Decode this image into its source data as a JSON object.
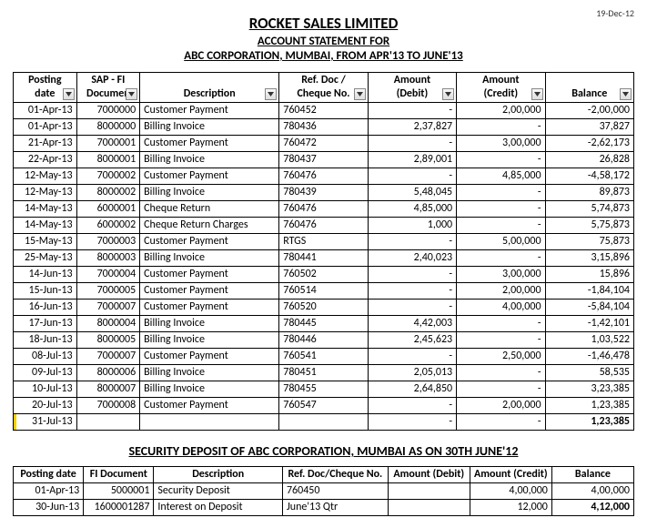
{
  "top_date": "19-Dec-12",
  "header": {
    "company": "ROCKET SALES LIMITED",
    "stmt": "ACCOUNT  STATEMENT FOR",
    "party": "ABC CORPORATION, MUMBAI, FROM APR'13 TO JUNE'13"
  },
  "main_table": {
    "col_widths_pct": [
      10,
      10,
      22,
      14,
      14,
      14,
      14
    ],
    "headers": [
      [
        "Posting",
        "date"
      ],
      [
        "SAP - FI",
        "Documen"
      ],
      [
        "",
        "Description"
      ],
      [
        "Ref. Doc /",
        "Cheque No."
      ],
      [
        "Amount",
        "(Debit)"
      ],
      [
        "Amount",
        "(Credit)"
      ],
      [
        "",
        "Balance"
      ]
    ],
    "rows": [
      {
        "date": "01-Apr-13",
        "doc": "7000000",
        "desc": "Customer Payment",
        "ref": "760452",
        "debit": "-",
        "credit": "2,00,000",
        "bal": "-2,00,000"
      },
      {
        "date": "01-Apr-13",
        "doc": "8000000",
        "desc": "Billing Invoice",
        "ref": "780436",
        "debit": "2,37,827",
        "credit": "-",
        "bal": "37,827"
      },
      {
        "date": "21-Apr-13",
        "doc": "7000001",
        "desc": "Customer Payment",
        "ref": "760472",
        "debit": "-",
        "credit": "3,00,000",
        "bal": "-2,62,173"
      },
      {
        "date": "22-Apr-13",
        "doc": "8000001",
        "desc": "Billing Invoice",
        "ref": "780437",
        "debit": "2,89,001",
        "credit": "-",
        "bal": "26,828"
      },
      {
        "date": "12-May-13",
        "doc": "7000002",
        "desc": "Customer Payment",
        "ref": "760476",
        "debit": "-",
        "credit": "4,85,000",
        "bal": "-4,58,172"
      },
      {
        "date": "12-May-13",
        "doc": "8000002",
        "desc": "Billing Invoice",
        "ref": "780439",
        "debit": "5,48,045",
        "credit": "-",
        "bal": "89,873"
      },
      {
        "date": "14-May-13",
        "doc": "6000001",
        "desc": "Cheque Return",
        "ref": "760476",
        "debit": "4,85,000",
        "credit": "-",
        "bal": "5,74,873"
      },
      {
        "date": "14-May-13",
        "doc": "6000002",
        "desc": "Cheque Return Charges",
        "ref": "760476",
        "debit": "1,000",
        "credit": "-",
        "bal": "5,75,873"
      },
      {
        "date": "15-May-13",
        "doc": "7000003",
        "desc": "Customer Payment",
        "ref": "RTGS",
        "debit": "-",
        "credit": "5,00,000",
        "bal": "75,873"
      },
      {
        "date": "25-May-13",
        "doc": "8000003",
        "desc": "Billing Invoice",
        "ref": "780441",
        "debit": "2,40,023",
        "credit": "-",
        "bal": "3,15,896"
      },
      {
        "date": "14-Jun-13",
        "doc": "7000004",
        "desc": "Customer Payment",
        "ref": "760502",
        "debit": "-",
        "credit": "3,00,000",
        "bal": "15,896"
      },
      {
        "date": "15-Jun-13",
        "doc": "7000005",
        "desc": "Customer Payment",
        "ref": "760514",
        "debit": "-",
        "credit": "2,00,000",
        "bal": "-1,84,104"
      },
      {
        "date": "16-Jun-13",
        "doc": "7000007",
        "desc": "Customer Payment",
        "ref": "760520",
        "debit": "-",
        "credit": "4,00,000",
        "bal": "-5,84,104"
      },
      {
        "date": "17-Jun-13",
        "doc": "8000004",
        "desc": "Billing Invoice",
        "ref": "780445",
        "debit": "4,42,003",
        "credit": "-",
        "bal": "-1,42,101"
      },
      {
        "date": "18-Jun-13",
        "doc": "8000005",
        "desc": "Billing Invoice",
        "ref": "780446",
        "debit": "2,45,623",
        "credit": "-",
        "bal": "1,03,522"
      },
      {
        "date": "08-Jul-13",
        "doc": "7000007",
        "desc": "Customer Payment",
        "ref": "760541",
        "debit": "-",
        "credit": "2,50,000",
        "bal": "-1,46,478"
      },
      {
        "date": "09-Jul-13",
        "doc": "8000006",
        "desc": "Billing Invoice",
        "ref": "780451",
        "debit": "2,05,013",
        "credit": "-",
        "bal": "58,535"
      },
      {
        "date": "10-Jul-13",
        "doc": "8000007",
        "desc": "Billing Invoice",
        "ref": "780455",
        "debit": "2,64,850",
        "credit": "-",
        "bal": "3,23,385"
      },
      {
        "date": "20-Jul-13",
        "doc": "7000008",
        "desc": "Customer Payment",
        "ref": "760547",
        "debit": "-",
        "credit": "2,00,000",
        "bal": "1,23,385"
      },
      {
        "date": "31-Jul-13",
        "doc": "",
        "desc": "",
        "ref": "",
        "debit": "-",
        "credit": "-",
        "bal": "1,23,385",
        "bold_bal": true,
        "highlight": true
      }
    ]
  },
  "sec_title": "SECURITY DEPOSIT OF ABC CORPORATION, MUMBAI AS ON 30TH JUNE'12",
  "sec_table": {
    "col_widths_pct": [
      12,
      12,
      22,
      18,
      14,
      14,
      14
    ],
    "headers": [
      "Posting date",
      "FI Document",
      "Description",
      "Ref. Doc/Cheque No.",
      "Amount (Debit)",
      "Amount (Credit)",
      "Balance"
    ],
    "rows": [
      {
        "date": "01-Apr-13",
        "doc": "5000001",
        "desc": "Security Deposit",
        "ref": "760450",
        "debit": "",
        "credit": "4,00,000",
        "bal": "4,00,000"
      },
      {
        "date": "30-Jun-13",
        "doc": "1600001287",
        "desc": "Interest on Deposit",
        "ref": "June'13 Qtr",
        "debit": "",
        "credit": "12,000",
        "bal": "4,12,000",
        "bold_bal": true
      }
    ]
  }
}
